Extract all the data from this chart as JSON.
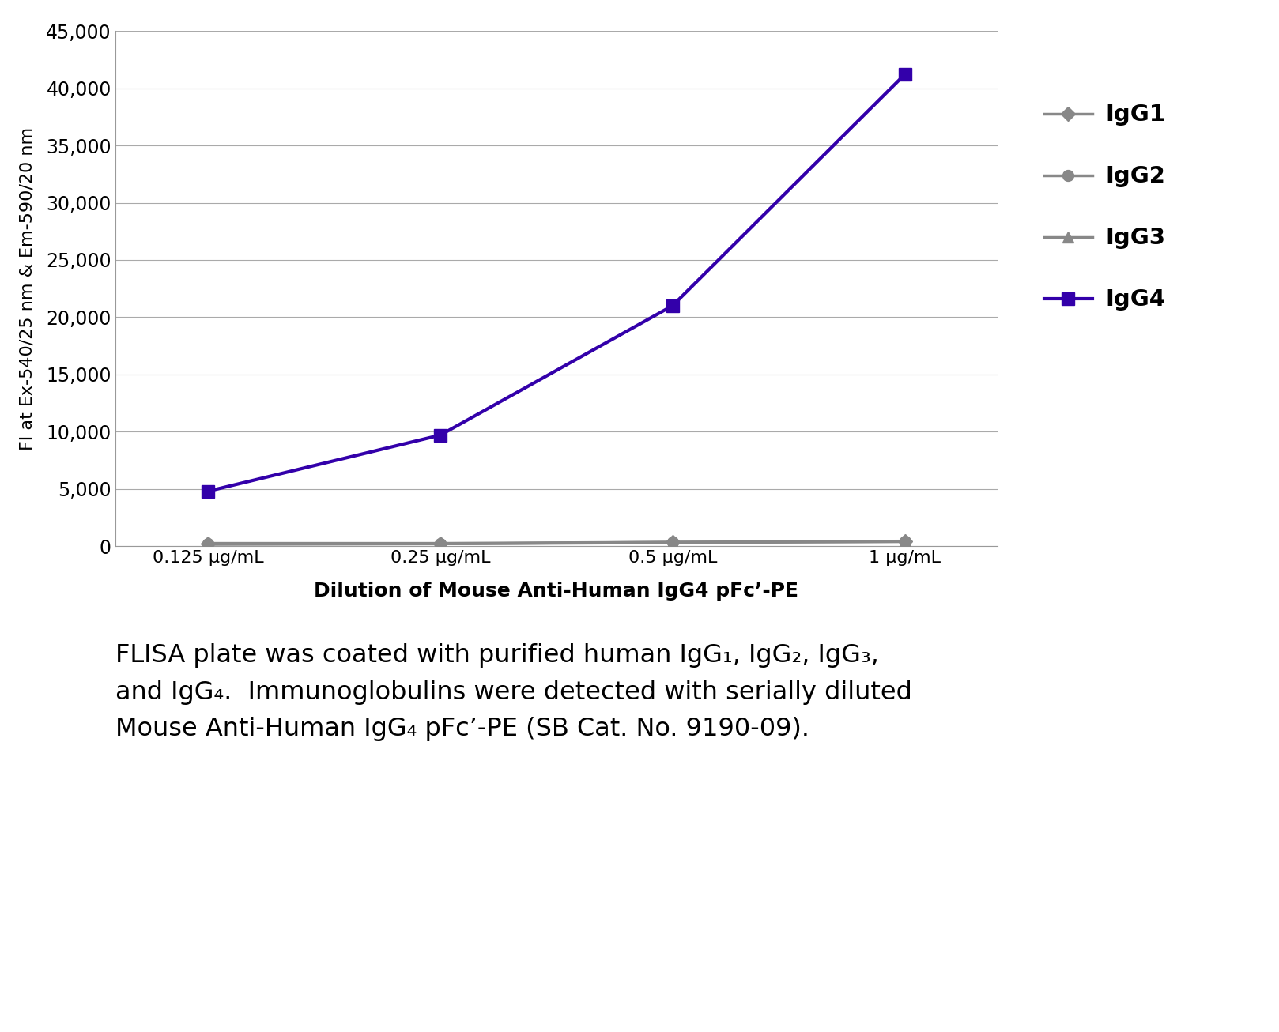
{
  "x_positions": [
    1,
    2,
    3,
    4
  ],
  "x_labels": [
    "0.125 μg/mL",
    "0.25 μg/mL",
    "0.5 μg/mL",
    "1 μg/mL"
  ],
  "IgG1": [
    200,
    200,
    350,
    400
  ],
  "IgG2": [
    250,
    250,
    350,
    450
  ],
  "IgG3": [
    150,
    200,
    300,
    400
  ],
  "IgG4": [
    4800,
    9700,
    21000,
    41200
  ],
  "IgG1_color": "#888888",
  "IgG2_color": "#888888",
  "IgG3_color": "#888888",
  "IgG4_color": "#3300aa",
  "ylabel": "FI at Ex-540/25 nm & Em-590/20 nm",
  "xlabel": "Dilution of Mouse Anti-Human IgG4 pFc’-PE",
  "ylim": [
    0,
    45000
  ],
  "yticks": [
    0,
    5000,
    10000,
    15000,
    20000,
    25000,
    30000,
    35000,
    40000,
    45000
  ],
  "caption_line1": "FLISA plate was coated with purified human IgG₁, IgG₂, IgG₃,",
  "caption_line2": "and IgG₄.  Immunoglobulins were detected with serially diluted",
  "caption_line3": "Mouse Anti-Human IgG₄ pFc’-PE (SB Cat. No. 9190-09).",
  "background_color": "#ffffff",
  "grid_color": "#aaaaaa",
  "line_width": 2.5,
  "marker_size": 9
}
